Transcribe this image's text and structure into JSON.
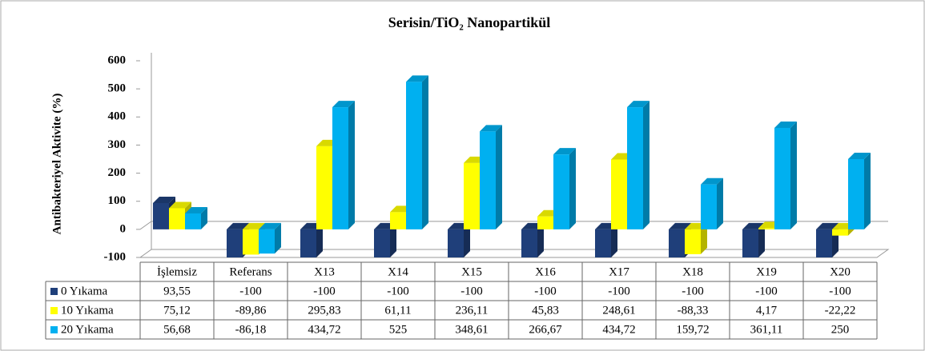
{
  "chart_data": {
    "type": "bar3d",
    "title": "Serisin/TiO₂ Nanopartikül",
    "y_label": "Antibakteriyel Aktivite (%)",
    "categories": [
      "İşlemsiz",
      "Referans",
      "X13",
      "X14",
      "X15",
      "X16",
      "X17",
      "X18",
      "X19",
      "X20"
    ],
    "series": [
      {
        "name": "0 Yıkama",
        "color": "#1f3f7a",
        "values": [
          93.55,
          -100,
          -100,
          -100,
          -100,
          -100,
          -100,
          -100,
          -100,
          -100
        ],
        "value_labels": [
          "93,55",
          "-100",
          "-100",
          "-100",
          "-100",
          "-100",
          "-100",
          "-100",
          "-100",
          "-100"
        ]
      },
      {
        "name": "10 Yıkama",
        "color": "#ffff00",
        "values": [
          75.12,
          -89.86,
          295.83,
          61.11,
          236.11,
          45.83,
          248.61,
          -88.33,
          4.17,
          -22.22
        ],
        "value_labels": [
          "75,12",
          "-89,86",
          "295,83",
          "61,11",
          "236,11",
          "45,83",
          "248,61",
          "-88,33",
          "4,17",
          "-22,22"
        ]
      },
      {
        "name": "20 Yıkama",
        "color": "#00b0f0",
        "values": [
          56.68,
          -86.18,
          434.72,
          525,
          348.61,
          266.67,
          434.72,
          159.72,
          361.11,
          250
        ],
        "value_labels": [
          "56,68",
          "-86,18",
          "434,72",
          "525",
          "348,61",
          "266,67",
          "434,72",
          "159,72",
          "361,11",
          "250"
        ]
      }
    ],
    "ylim": [
      -100,
      600
    ],
    "yticks": [
      -100,
      0,
      100,
      200,
      300,
      400,
      500,
      600
    ]
  }
}
